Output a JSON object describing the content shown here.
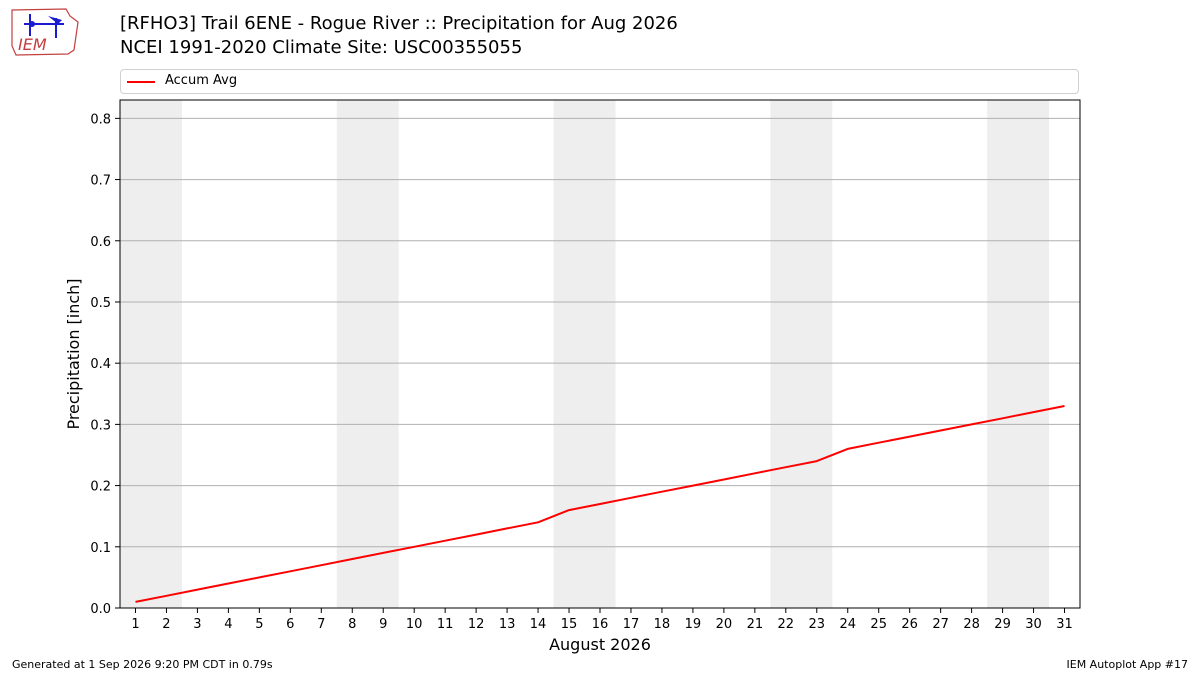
{
  "header": {
    "title_line1": "[RFHO3] Trail 6ENE - Rogue River :: Precipitation for Aug 2026",
    "title_line2": "NCEI 1991-2020 Climate Site: USC00355055",
    "logo_text": "IEM"
  },
  "footer": {
    "generated": "Generated at 1 Sep 2026 9:20 PM CDT in 0.79s",
    "app": "IEM Autoplot App #17"
  },
  "colors": {
    "line": "#ff0000",
    "weekend_band": "#eeeeee",
    "grid": "#b0b0b0"
  },
  "chart_data": {
    "type": "line",
    "title": "[RFHO3] Trail 6ENE - Rogue River :: Precipitation for Aug 2026",
    "subtitle": "NCEI 1991-2020 Climate Site: USC00355055",
    "xlabel": "August 2026",
    "ylabel": "Precipitation [inch]",
    "x": [
      1,
      2,
      3,
      4,
      5,
      6,
      7,
      8,
      9,
      10,
      11,
      12,
      13,
      14,
      15,
      16,
      17,
      18,
      19,
      20,
      21,
      22,
      23,
      24,
      25,
      26,
      27,
      28,
      29,
      30,
      31
    ],
    "xticks": [
      "1",
      "2",
      "3",
      "4",
      "5",
      "6",
      "7",
      "8",
      "9",
      "10",
      "11",
      "12",
      "13",
      "14",
      "15",
      "16",
      "17",
      "18",
      "19",
      "20",
      "21",
      "22",
      "23",
      "24",
      "25",
      "26",
      "27",
      "28",
      "29",
      "30",
      "31"
    ],
    "yticks": [
      "0.0",
      "0.1",
      "0.2",
      "0.3",
      "0.4",
      "0.5",
      "0.6",
      "0.7",
      "0.8"
    ],
    "ylim": [
      0,
      0.83
    ],
    "xlim": [
      0.5,
      31.5
    ],
    "grid": "horizontal",
    "legend_position": "top",
    "weekend_bands": [
      [
        1,
        2
      ],
      [
        8,
        9
      ],
      [
        15,
        16
      ],
      [
        22,
        23
      ],
      [
        29,
        30
      ]
    ],
    "series": [
      {
        "name": "Accum Avg",
        "values": [
          0.01,
          0.02,
          0.03,
          0.04,
          0.05,
          0.06,
          0.07,
          0.08,
          0.09,
          0.1,
          0.11,
          0.12,
          0.13,
          0.14,
          0.16,
          0.17,
          0.18,
          0.19,
          0.2,
          0.21,
          0.22,
          0.23,
          0.24,
          0.26,
          0.27,
          0.28,
          0.29,
          0.3,
          0.31,
          0.32,
          0.33
        ]
      }
    ]
  }
}
